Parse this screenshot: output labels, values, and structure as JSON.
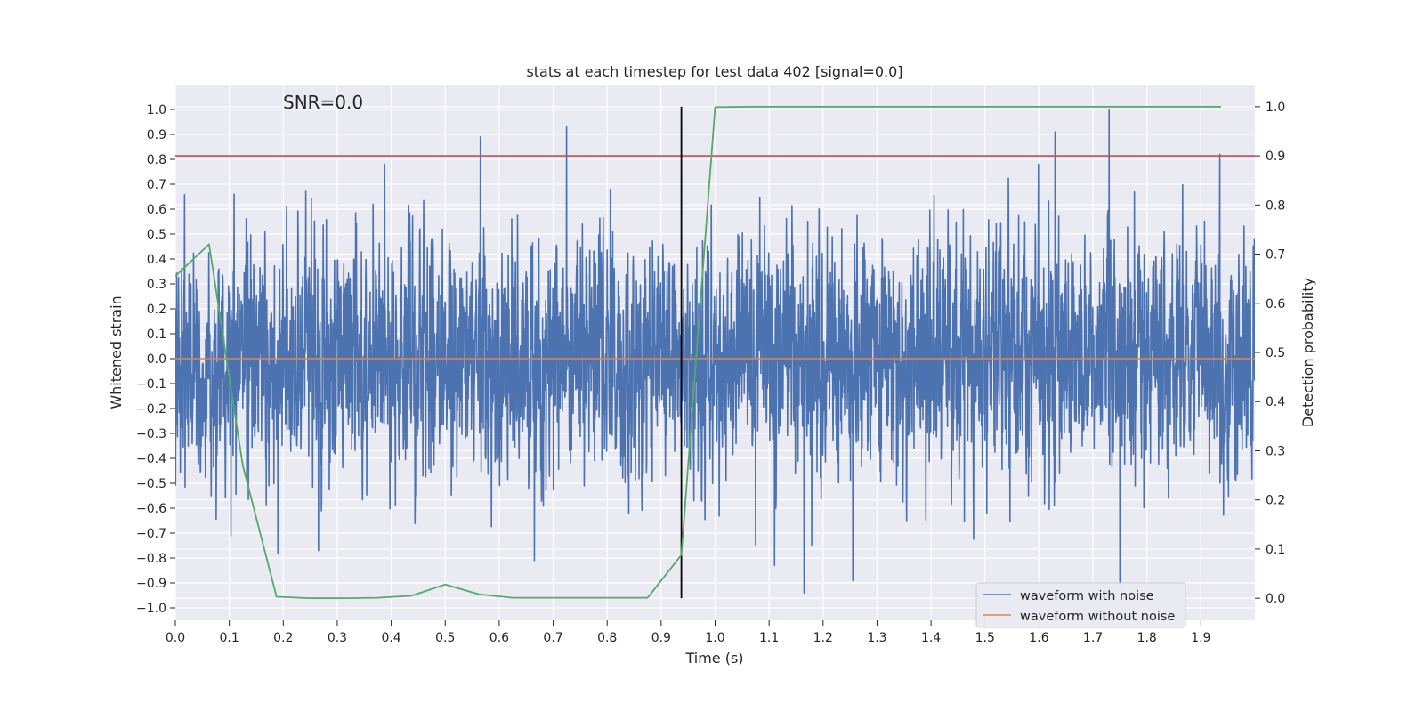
{
  "chart_data": {
    "type": "line",
    "title": "stats at each timestep for test data 402 [signal=0.0]",
    "xlabel": "Time (s)",
    "ylabel": "Whitened strain",
    "y2label": "Detection probability",
    "annotation": "SNR=0.0",
    "xlim": [
      0.0,
      2.0
    ],
    "ylim": [
      -1.05,
      1.1
    ],
    "y2lim": [
      -0.045,
      1.045
    ],
    "xticks": [
      0.0,
      0.1,
      0.2,
      0.3,
      0.4,
      0.5,
      0.6,
      0.7,
      0.8,
      0.9,
      1.0,
      1.1,
      1.2,
      1.3,
      1.4,
      1.5,
      1.6,
      1.7,
      1.8,
      1.9
    ],
    "yticks": [
      -1.0,
      -0.9,
      -0.8,
      -0.7,
      -0.6,
      -0.5,
      -0.4,
      -0.3,
      -0.2,
      -0.1,
      0.0,
      0.1,
      0.2,
      0.3,
      0.4,
      0.5,
      0.6,
      0.7,
      0.8,
      0.9,
      1.0
    ],
    "y2ticks": [
      0.0,
      0.1,
      0.2,
      0.3,
      0.4,
      0.5,
      0.6,
      0.7,
      0.8,
      0.9,
      1.0
    ],
    "xtick_labels": [
      "0.0",
      "0.1",
      "0.2",
      "0.3",
      "0.4",
      "0.5",
      "0.6",
      "0.7",
      "0.8",
      "0.9",
      "1.0",
      "1.1",
      "1.2",
      "1.3",
      "1.4",
      "1.5",
      "1.6",
      "1.7",
      "1.8",
      "1.9"
    ],
    "ytick_labels": [
      "1.0",
      "0.9",
      "0.8",
      "0.7",
      "0.6",
      "0.5",
      "0.4",
      "0.3",
      "0.2",
      "0.1",
      "0.0",
      "−0.1",
      "−0.2",
      "−0.3",
      "−0.4",
      "−0.5",
      "−0.6",
      "−0.7",
      "−0.8",
      "−0.9",
      "−1.0"
    ],
    "y2tick_labels": [
      "1.0",
      "0.9",
      "0.8",
      "0.7",
      "0.6",
      "0.5",
      "0.4",
      "0.3",
      "0.2",
      "0.1",
      "0.0"
    ],
    "grid": true,
    "legend_position": "bottom-right",
    "series": [
      {
        "name": "waveform with noise",
        "color": "#4c72b0",
        "samples": 4096,
        "approx_std": 0.25,
        "range": [
          -1.0,
          1.0
        ],
        "peaks": [
          {
            "x": 0.565,
            "y": 0.89
          },
          {
            "x": 0.725,
            "y": 0.93
          },
          {
            "x": 1.63,
            "y": 0.91
          },
          {
            "x": 1.73,
            "y": 1.0
          },
          {
            "x": 1.935,
            "y": 0.82
          },
          {
            "x": 1.165,
            "y": -0.94
          },
          {
            "x": 1.255,
            "y": -0.89
          },
          {
            "x": 1.75,
            "y": -0.92
          },
          {
            "x": 0.665,
            "y": -0.81
          },
          {
            "x": 0.19,
            "y": -0.78
          },
          {
            "x": 0.265,
            "y": -0.77
          },
          {
            "x": 1.11,
            "y": -0.83
          }
        ]
      },
      {
        "name": "waveform without noise",
        "color": "#dd8452",
        "x": [
          0.0,
          2.0
        ],
        "y": [
          0.0,
          0.0
        ]
      },
      {
        "name": "",
        "axis": "right",
        "color": "#55a868",
        "x": [
          0.0,
          0.0625,
          0.125,
          0.1875,
          0.25,
          0.3125,
          0.375,
          0.4375,
          0.5,
          0.5625,
          0.625,
          0.6875,
          0.75,
          0.8125,
          0.875,
          0.9375,
          1.0,
          1.0625,
          1.125,
          1.1875,
          1.25,
          1.3125,
          1.375,
          1.4375,
          1.5,
          1.5625,
          1.625,
          1.6875,
          1.75,
          1.8125,
          1.875,
          1.9375
        ],
        "y": [
          0.655,
          0.72,
          0.27,
          0.003,
          0.0,
          0.0,
          0.001,
          0.005,
          0.028,
          0.008,
          0.001,
          0.001,
          0.001,
          0.001,
          0.001,
          0.088,
          0.999,
          1.0,
          1.0,
          1.0,
          1.0,
          1.0,
          1.0,
          1.0,
          1.0,
          1.0,
          1.0,
          1.0,
          1.0,
          1.0,
          1.0,
          1.0
        ]
      }
    ],
    "hlines": [
      {
        "y": 0.9,
        "axis": "right",
        "color": "#c44e52"
      }
    ],
    "vlines": [
      {
        "x": 0.9375,
        "color": "#000000",
        "ymin": 0.0,
        "ymax": 1.0,
        "axis": "right"
      }
    ]
  }
}
